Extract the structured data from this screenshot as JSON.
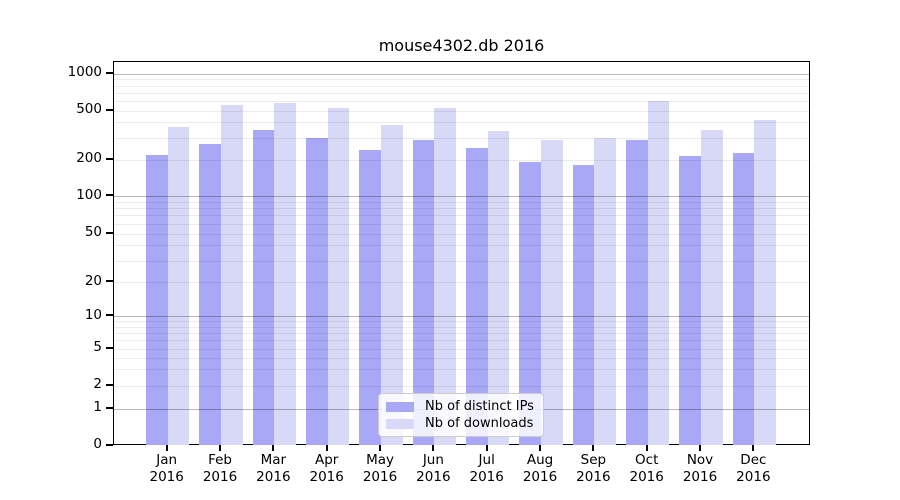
{
  "title": "mouse4302.db 2016",
  "legend": {
    "items": [
      {
        "label": "Nb of distinct IPs",
        "color": "#a8a8f7"
      },
      {
        "label": "Nb of downloads",
        "color": "#d8d8f7"
      }
    ]
  },
  "chart_data": {
    "type": "bar",
    "title": "mouse4302.db 2016",
    "categories": [
      "Jan",
      "Feb",
      "Mar",
      "Apr",
      "May",
      "Jun",
      "Jul",
      "Aug",
      "Sep",
      "Oct",
      "Nov",
      "Dec"
    ],
    "x_year_label": "2016",
    "series": [
      {
        "name": "Nb of distinct IPs",
        "color": "#a8a8f7",
        "values": [
          220,
          270,
          350,
          300,
          240,
          290,
          250,
          190,
          180,
          290,
          215,
          225
        ]
      },
      {
        "name": "Nb of downloads",
        "color": "#d8d8f7",
        "values": [
          370,
          550,
          580,
          520,
          380,
          520,
          340,
          290,
          300,
          600,
          350,
          420
        ]
      }
    ],
    "yscale": "symlog",
    "yticks": [
      0,
      1,
      2,
      5,
      10,
      20,
      50,
      100,
      200,
      500,
      1000
    ],
    "ylim": [
      0,
      1000
    ],
    "grid": true,
    "legend_position": "lower center",
    "xlabel": "",
    "ylabel": ""
  }
}
